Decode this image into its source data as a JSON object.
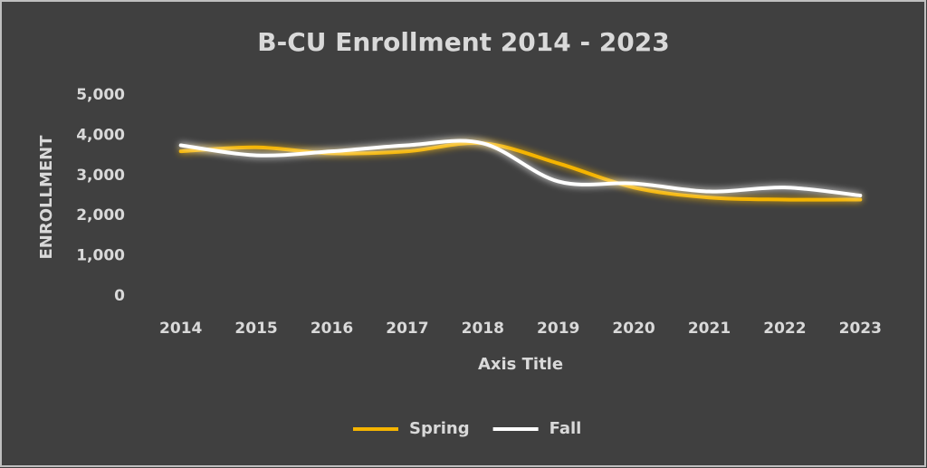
{
  "chart_data": {
    "type": "line",
    "title": "B-CU Enrollment 2014 - 2023",
    "x_label": "Axis Title",
    "y_label": "ENROLLMENT",
    "categories": [
      "2014",
      "2015",
      "2016",
      "2017",
      "2018",
      "2019",
      "2020",
      "2021",
      "2022",
      "2023"
    ],
    "series": [
      {
        "name": "Spring",
        "color": "#f5b400",
        "values": [
          3600,
          3700,
          3550,
          3600,
          3800,
          3300,
          2700,
          2450,
          2400,
          2400
        ]
      },
      {
        "name": "Fall",
        "color": "#ffffff",
        "values": [
          3750,
          3500,
          3600,
          3750,
          3800,
          2850,
          2800,
          2600,
          2700,
          2500
        ]
      }
    ],
    "ylim": [
      0,
      5000
    ],
    "yticks": [
      0,
      {
        "value": 1000,
        "label": "1,000"
      },
      {
        "value": 2000,
        "label": "2,000"
      },
      {
        "value": 3000,
        "label": "3,000"
      },
      {
        "value": 4000,
        "label": "4,000"
      },
      {
        "value": 5000,
        "label": "5,000"
      }
    ],
    "smooth": true,
    "legend": "bottom"
  }
}
